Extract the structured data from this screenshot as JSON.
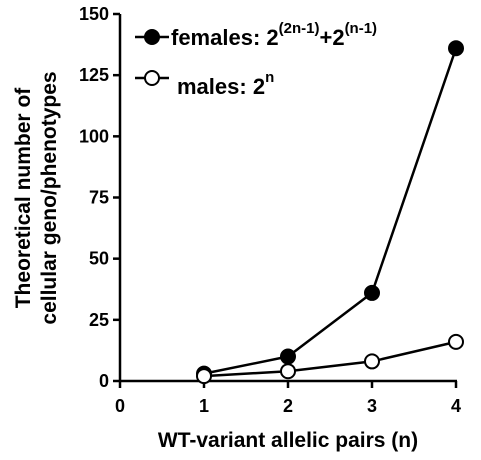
{
  "chart_data": {
    "type": "line",
    "xlabel": "WT-variant allelic pairs (n)",
    "ylabel_lines": [
      "Theoretical number of",
      "cellular geno/phenotypes"
    ],
    "xlim": [
      0,
      4
    ],
    "ylim": [
      0,
      150
    ],
    "xticks": [
      0,
      1,
      2,
      3,
      4
    ],
    "yticks": [
      0,
      25,
      50,
      75,
      100,
      125,
      150
    ],
    "grid": false,
    "legend_position": "top-left",
    "series": [
      {
        "marker": "filled-circle",
        "color": "#000000",
        "legend_base": "females: 2",
        "legend_sup1": "(2n-1)",
        "legend_plus": "+2",
        "legend_sup2": "(n-1)",
        "x": [
          1,
          2,
          3,
          4
        ],
        "y": [
          3,
          10,
          36,
          136
        ]
      },
      {
        "marker": "open-circle",
        "color": "#000000",
        "legend_base": "males: 2",
        "legend_sup1": "n",
        "x": [
          1,
          2,
          3,
          4
        ],
        "y": [
          2,
          4,
          8,
          16
        ]
      }
    ]
  }
}
